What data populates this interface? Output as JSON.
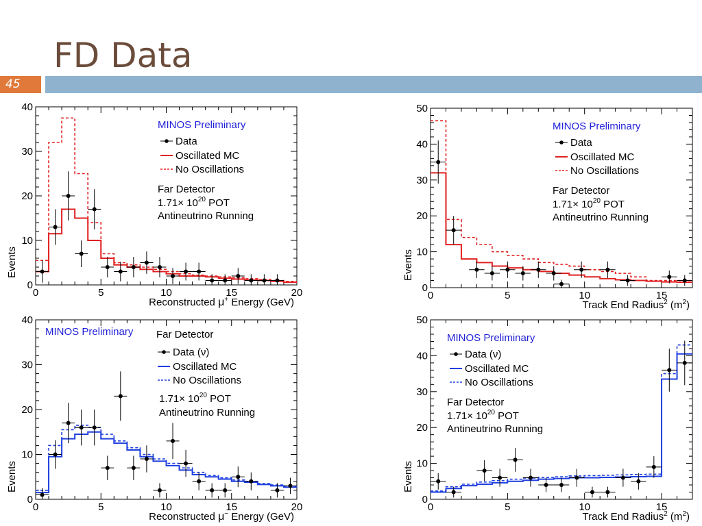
{
  "slide": {
    "title": "FD Data",
    "number": "45"
  },
  "chart_data": [
    {
      "type": "step",
      "id": "tl",
      "xlim": [
        0,
        20
      ],
      "ylim": [
        0,
        40
      ],
      "xticks": [
        0,
        5,
        10,
        15,
        20
      ],
      "yticks": [
        0,
        10,
        20,
        30,
        40
      ],
      "xlabel_pre": "Reconstructed ",
      "xlabel_sym": "μ",
      "xlabel_sup": "+",
      "xlabel_post": " Energy (GeV)",
      "ylabel": "Events",
      "color": "#e02020",
      "legend": {
        "title": "MINOS Preliminary",
        "data": "Data",
        "osc": "Oscillated MC",
        "noosc": "No Oscillations",
        "info": [
          "Far Detector",
          "1.71× 10",
          "20",
          " POT",
          "Antineutrino Running"
        ]
      },
      "edges": [
        0,
        1,
        2,
        3,
        4,
        5,
        6,
        7,
        8,
        9,
        10,
        11,
        12,
        13,
        14,
        15,
        16,
        17,
        18,
        19,
        20
      ],
      "oscillated": [
        3,
        11.5,
        17,
        15,
        10,
        6,
        4.5,
        4,
        3.5,
        3,
        2.5,
        2,
        2,
        1.8,
        1.5,
        1.3,
        1.1,
        1,
        0.8,
        0.6
      ],
      "no_oscillations": [
        5.5,
        32,
        37.5,
        25,
        14,
        7,
        5,
        4.5,
        4,
        3.5,
        3,
        2.5,
        2.2,
        2,
        1.8,
        1.6,
        1.4,
        1.2,
        1,
        0.8
      ],
      "data": [
        {
          "x": 0.5,
          "y": 3,
          "err": 2.5
        },
        {
          "x": 1.5,
          "y": 13,
          "err": 4
        },
        {
          "x": 2.5,
          "y": 20,
          "err": 5.5
        },
        {
          "x": 3.5,
          "y": 7,
          "err": 3
        },
        {
          "x": 4.5,
          "y": 17,
          "err": 4.5
        },
        {
          "x": 5.5,
          "y": 4,
          "err": 2.3
        },
        {
          "x": 6.5,
          "y": 3,
          "err": 2.2
        },
        {
          "x": 7.5,
          "y": 4,
          "err": 2.3
        },
        {
          "x": 8.5,
          "y": 5,
          "err": 2.5
        },
        {
          "x": 9.5,
          "y": 4,
          "err": 2.3
        },
        {
          "x": 10.5,
          "y": 2,
          "err": 1.8
        },
        {
          "x": 11.5,
          "y": 3,
          "err": 2
        },
        {
          "x": 12.5,
          "y": 3,
          "err": 2
        },
        {
          "x": 13.5,
          "y": 1,
          "err": 1.4
        },
        {
          "x": 14.5,
          "y": 1,
          "err": 1.4
        },
        {
          "x": 15.5,
          "y": 2,
          "err": 1.8
        },
        {
          "x": 16.5,
          "y": 1,
          "err": 1.4
        },
        {
          "x": 17.5,
          "y": 1,
          "err": 1.4
        },
        {
          "x": 18.5,
          "y": 1,
          "err": 1.4
        }
      ]
    },
    {
      "type": "step",
      "id": "tr",
      "xlim": [
        0,
        17
      ],
      "ylim": [
        0,
        50
      ],
      "xticks": [
        0,
        5,
        10,
        15
      ],
      "yticks": [
        0,
        10,
        20,
        30,
        40,
        50
      ],
      "xlabel_pre": "Track End Radius",
      "xlabel_sup": "2",
      "xlabel_post": " (m",
      "xlabel_sup2": "2",
      "xlabel_end": ")",
      "ylabel": "Events",
      "color": "#e02020",
      "legend": {
        "title": "MINOS Preliminary",
        "data": "Data",
        "osc": "Oscillated MC",
        "noosc": "No Oscillations",
        "info": [
          "Far Detector",
          "1.71× 10",
          "20",
          " POT",
          "Antineutrino Running"
        ]
      },
      "edges": [
        0,
        1,
        2,
        3,
        4,
        5,
        6,
        7,
        8,
        9,
        10,
        11,
        12,
        13,
        14,
        15,
        16,
        17
      ],
      "oscillated": [
        32,
        12,
        8,
        7,
        6,
        5.5,
        5,
        4.5,
        4,
        3.5,
        3,
        2.5,
        2.2,
        2,
        1.8,
        1.6,
        1.5
      ],
      "no_oscillations": [
        46.5,
        19,
        14,
        12,
        10,
        9,
        8,
        7,
        6.5,
        6,
        5,
        4.5,
        4,
        3,
        2,
        2,
        2
      ],
      "data": [
        {
          "x": 0.5,
          "y": 35,
          "err": 6
        },
        {
          "x": 1.5,
          "y": 16,
          "err": 4
        },
        {
          "x": 3,
          "y": 5,
          "err": 2.3
        },
        {
          "x": 4,
          "y": 4,
          "err": 2
        },
        {
          "x": 5,
          "y": 5,
          "err": 2.3
        },
        {
          "x": 6,
          "y": 4,
          "err": 2
        },
        {
          "x": 7,
          "y": 5,
          "err": 2.3
        },
        {
          "x": 8,
          "y": 4,
          "err": 2
        },
        {
          "x": 8.5,
          "y": 1,
          "err": 1.2
        },
        {
          "x": 9.8,
          "y": 5,
          "err": 2.3
        },
        {
          "x": 11.5,
          "y": 5,
          "err": 2.3
        },
        {
          "x": 12.8,
          "y": 2,
          "err": 1.5
        },
        {
          "x": 15.5,
          "y": 3,
          "err": 1.8
        },
        {
          "x": 16.5,
          "y": 2,
          "err": 1.5
        }
      ]
    },
    {
      "type": "step",
      "id": "bl",
      "xlim": [
        0,
        20
      ],
      "ylim": [
        0,
        40
      ],
      "xticks": [
        0,
        5,
        10,
        15,
        20
      ],
      "yticks": [
        0,
        10,
        20,
        30,
        40
      ],
      "xlabel_pre": "Reconstructed ",
      "xlabel_sym": "μ",
      "xlabel_sup": "−",
      "xlabel_post": " Energy (GeV)",
      "ylabel": "Events",
      "color": "#1f3fdf",
      "legend": {
        "title": "MINOS Preliminary",
        "head": "Far Detector",
        "data": "Data (ν)",
        "osc": "Oscillated MC",
        "noosc": "No Oscillations",
        "info": [
          "1.71× 10",
          "20",
          " POT",
          "Antineutrino Running"
        ]
      },
      "edges": [
        0,
        1,
        2,
        3,
        4,
        5,
        6,
        7,
        8,
        9,
        10,
        11,
        12,
        13,
        14,
        15,
        16,
        17,
        18,
        19,
        20
      ],
      "oscillated": [
        1.5,
        9.5,
        13.5,
        14.5,
        15,
        13.5,
        12.5,
        11,
        9.5,
        8.5,
        7.5,
        6.5,
        5.5,
        5,
        4.5,
        4,
        3.8,
        3.3,
        3,
        2.7
      ],
      "no_oscillations": [
        2,
        12,
        15.5,
        16.5,
        16,
        14.5,
        13,
        11.5,
        10,
        9,
        8,
        7,
        6,
        5.3,
        4.8,
        4.3,
        4,
        3.5,
        3.2,
        2.9
      ],
      "data": [
        {
          "x": 0.5,
          "y": 1,
          "err": 1.5
        },
        {
          "x": 1.5,
          "y": 10,
          "err": 3.2
        },
        {
          "x": 2.5,
          "y": 17,
          "err": 4.5
        },
        {
          "x": 3.5,
          "y": 16,
          "err": 4
        },
        {
          "x": 4.5,
          "y": 16,
          "err": 4
        },
        {
          "x": 5.5,
          "y": 7,
          "err": 2.7
        },
        {
          "x": 6.5,
          "y": 23,
          "err": 5.5
        },
        {
          "x": 7.5,
          "y": 7,
          "err": 2.7
        },
        {
          "x": 8.5,
          "y": 9,
          "err": 3
        },
        {
          "x": 9.5,
          "y": 2,
          "err": 1.6
        },
        {
          "x": 10.5,
          "y": 13,
          "err": 4
        },
        {
          "x": 11.5,
          "y": 8,
          "err": 3
        },
        {
          "x": 12.5,
          "y": 4,
          "err": 2
        },
        {
          "x": 13.5,
          "y": 2,
          "err": 1.6
        },
        {
          "x": 14.5,
          "y": 2,
          "err": 1.6
        },
        {
          "x": 15.5,
          "y": 5,
          "err": 2.3
        },
        {
          "x": 16.5,
          "y": 4,
          "err": 2
        },
        {
          "x": 18.5,
          "y": 2,
          "err": 1.6
        },
        {
          "x": 19.5,
          "y": 3,
          "err": 1.8
        }
      ]
    },
    {
      "type": "step",
      "id": "br",
      "xlim": [
        0,
        17
      ],
      "ylim": [
        0,
        50
      ],
      "xticks": [
        0,
        5,
        10,
        15
      ],
      "yticks": [
        0,
        10,
        20,
        30,
        40,
        50
      ],
      "xlabel_pre": "Track End Radius",
      "xlabel_sup": "2",
      "xlabel_post": " (m",
      "xlabel_sup2": "2",
      "xlabel_end": ")",
      "ylabel": "Events",
      "color": "#1f3fdf",
      "legend": {
        "title": "MINOS Preliminary",
        "data": "Data (ν)",
        "osc": "Oscillated MC",
        "noosc": "No Oscillations",
        "info": [
          "Far Detector",
          "1.71× 10",
          "20",
          " POT",
          "Antineutrino Running"
        ]
      },
      "edges": [
        0,
        1,
        2,
        3,
        4,
        5,
        6,
        7,
        8,
        9,
        10,
        11,
        12,
        13,
        14,
        15,
        16,
        17
      ],
      "oscillated": [
        2,
        3,
        3.8,
        4.2,
        4.6,
        5,
        5.3,
        5.6,
        5.8,
        6,
        6,
        6.1,
        6.2,
        6.3,
        6.4,
        33.5,
        40.5
      ],
      "no_oscillations": [
        2.3,
        3.5,
        4.2,
        4.8,
        5.2,
        5.6,
        5.9,
        6.1,
        6.3,
        6.5,
        6.6,
        6.7,
        6.8,
        6.9,
        7,
        35,
        43
      ],
      "data": [
        {
          "x": 0.5,
          "y": 5,
          "err": 2.3
        },
        {
          "x": 1.5,
          "y": 2,
          "err": 1.5
        },
        {
          "x": 3.5,
          "y": 8,
          "err": 2.9
        },
        {
          "x": 4.5,
          "y": 6,
          "err": 2.5
        },
        {
          "x": 5.5,
          "y": 11,
          "err": 3.3
        },
        {
          "x": 6.5,
          "y": 6,
          "err": 2.5
        },
        {
          "x": 7.5,
          "y": 4,
          "err": 2
        },
        {
          "x": 8.5,
          "y": 4,
          "err": 2
        },
        {
          "x": 9.5,
          "y": 6,
          "err": 2.5
        },
        {
          "x": 10.5,
          "y": 2,
          "err": 1.5
        },
        {
          "x": 11.5,
          "y": 2,
          "err": 1.5
        },
        {
          "x": 12.5,
          "y": 6,
          "err": 2.5
        },
        {
          "x": 13.5,
          "y": 5,
          "err": 2.3
        },
        {
          "x": 14.5,
          "y": 9,
          "err": 3
        },
        {
          "x": 15.5,
          "y": 36,
          "err": 6
        },
        {
          "x": 16.5,
          "y": 38,
          "err": 6.2
        }
      ]
    }
  ]
}
